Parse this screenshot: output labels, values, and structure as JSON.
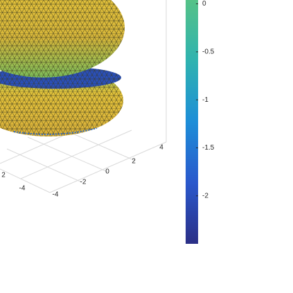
{
  "chart_data": {
    "type": "surface3d",
    "xticks": [
      4,
      2,
      0,
      -2,
      -4
    ],
    "yticks": [
      2,
      -4
    ],
    "colorbar": {
      "lim": [
        -2.5,
        0.04
      ],
      "ticks": [
        0,
        -0.5,
        -1,
        -1.5,
        -2
      ],
      "colors": [
        "#2b2f86",
        "#2a58cc",
        "#1d8ed8",
        "#2fb3b0",
        "#55c287"
      ]
    }
  }
}
